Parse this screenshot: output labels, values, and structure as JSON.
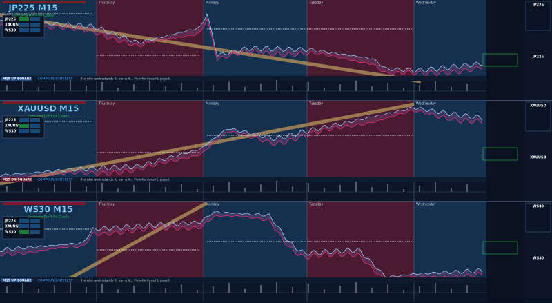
{
  "panes": [
    {
      "symbol": "JP225 M15",
      "subtitle": "Confusing Don't Be Clearly",
      "status": "M15 UP SQUARE",
      "side_label": "JP225"
    },
    {
      "symbol": "XAUUSD M15",
      "subtitle": "Confusing Don't Be Clearly",
      "status": "M15 DN SQUARE",
      "side_label": "XAUUSD"
    },
    {
      "symbol": "WS30 M15",
      "subtitle": "Confusing Don't Be Clearly",
      "status": "M15 UP SQUARE",
      "side_label": "WS30"
    }
  ],
  "days": [
    "Thursday",
    "Monday",
    "Tuesday",
    "Wednesday"
  ],
  "compound": "COMPOUND INTEREST",
  "motto": "He who understands it, earns it... He who doesn't, pays it",
  "table_symbols": [
    "JP225",
    "XAUUSD",
    "WS30"
  ]
}
